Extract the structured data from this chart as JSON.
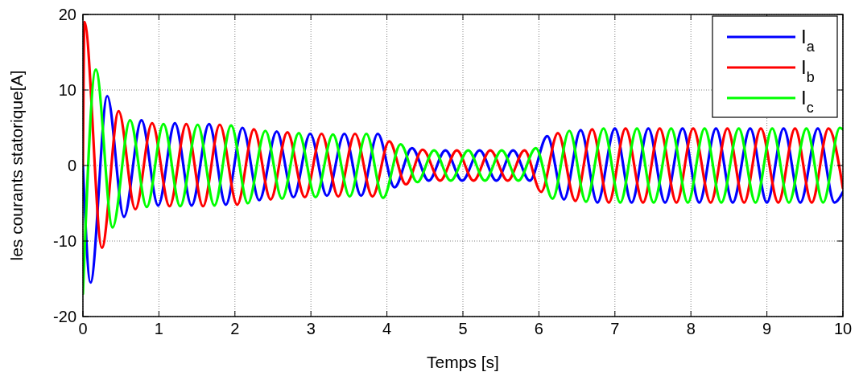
{
  "chart_data": {
    "type": "line",
    "xlabel": "Temps [s]",
    "ylabel": "les courants statorique[A]",
    "xlim": [
      0,
      10
    ],
    "ylim": [
      -20,
      20
    ],
    "xticks": [
      0,
      1,
      2,
      3,
      4,
      5,
      6,
      7,
      8,
      9,
      10
    ],
    "yticks": [
      -20,
      -10,
      0,
      10,
      20
    ],
    "grid": true,
    "legend": "top right",
    "line_style": "solid",
    "marker": "none",
    "series": [
      {
        "name": "I$_{a}$",
        "color": "#0000ff",
        "x": [
          0,
          0.1,
          0.32,
          0.54,
          0.77,
          0.99,
          1.21,
          1.43,
          1.66,
          1.88,
          2.1,
          2.32,
          2.55,
          2.77,
          2.99,
          3.21,
          3.44,
          3.66,
          3.88,
          4.1,
          4.33,
          4.55,
          4.77,
          4.99,
          5.22,
          5.44,
          5.66,
          5.88,
          6.11,
          6.33,
          6.55,
          6.77,
          7.0,
          7.22,
          7.44,
          7.66,
          7.89,
          8.11,
          8.33,
          8.55,
          8.78,
          9.0,
          9.22,
          9.44,
          9.67,
          9.89,
          10
        ],
        "values": [
          0,
          -15.5,
          9.2,
          -6.8,
          6.0,
          -5.3,
          5.6,
          -5.3,
          5.5,
          -5.2,
          5.0,
          -4.6,
          4.5,
          -4.2,
          4.2,
          -4.0,
          4.2,
          -4.0,
          4.2,
          -2.9,
          2.3,
          -2.0,
          2.0,
          -2.0,
          2.0,
          -2.0,
          2.0,
          -2.0,
          3.9,
          -4.5,
          4.7,
          -4.9,
          4.9,
          -4.9,
          4.9,
          -4.9,
          4.9,
          -4.9,
          4.9,
          -4.9,
          4.9,
          -4.9,
          4.9,
          -4.9,
          4.9,
          -4.9,
          -3.5
        ]
      },
      {
        "name": "I$_{b}$",
        "color": "#ff0000",
        "x": [
          0,
          0.02,
          0.25,
          0.47,
          0.69,
          0.91,
          1.14,
          1.36,
          1.58,
          1.8,
          2.03,
          2.25,
          2.47,
          2.69,
          2.92,
          3.14,
          3.36,
          3.58,
          3.81,
          4.03,
          4.25,
          4.47,
          4.7,
          4.92,
          5.14,
          5.36,
          5.59,
          5.81,
          6.03,
          6.25,
          6.48,
          6.7,
          6.92,
          7.14,
          7.37,
          7.59,
          7.81,
          8.03,
          8.26,
          8.48,
          8.7,
          8.92,
          9.15,
          9.37,
          9.59,
          9.81,
          10
        ],
        "values": [
          0,
          19,
          -10.9,
          7.2,
          -5.8,
          5.6,
          -5.4,
          5.5,
          -5.4,
          5.4,
          -5.2,
          4.8,
          -4.5,
          4.4,
          -4.2,
          4.2,
          -4.1,
          4.2,
          -4.1,
          3.2,
          -2.5,
          2.1,
          -2.0,
          2.0,
          -2.0,
          2.0,
          -2.0,
          2.0,
          -3.5,
          4.3,
          -4.7,
          4.8,
          -4.9,
          4.9,
          -4.9,
          4.9,
          -4.9,
          4.9,
          -4.9,
          4.9,
          -4.9,
          4.9,
          -4.9,
          4.9,
          -4.9,
          4.9,
          -3.0
        ]
      },
      {
        "name": "I$_{c}$",
        "color": "#00ff00",
        "x": [
          0,
          0.17,
          0.39,
          0.62,
          0.84,
          1.06,
          1.28,
          1.51,
          1.73,
          1.95,
          2.17,
          2.4,
          2.62,
          2.84,
          3.06,
          3.29,
          3.51,
          3.73,
          3.95,
          4.18,
          4.4,
          4.62,
          4.84,
          5.07,
          5.29,
          5.51,
          5.73,
          5.96,
          6.18,
          6.4,
          6.62,
          6.85,
          7.07,
          7.29,
          7.51,
          7.74,
          7.96,
          8.18,
          8.4,
          8.63,
          8.85,
          9.07,
          9.29,
          9.52,
          9.74,
          9.96,
          10
        ],
        "values": [
          -17,
          12.7,
          -8.2,
          6.0,
          -5.5,
          5.5,
          -5.4,
          5.4,
          -5.3,
          5.3,
          -5.0,
          4.6,
          -4.4,
          4.3,
          -4.2,
          4.1,
          -4.1,
          4.2,
          -4.3,
          2.8,
          -2.2,
          2.0,
          -2.0,
          2.0,
          -2.0,
          2.0,
          -2.0,
          2.3,
          -4.4,
          4.6,
          -4.8,
          4.9,
          -4.9,
          4.9,
          -4.9,
          4.9,
          -4.9,
          4.9,
          -4.9,
          4.9,
          -4.9,
          4.9,
          -4.9,
          4.9,
          -4.9,
          5.0,
          4.8
        ]
      }
    ]
  }
}
